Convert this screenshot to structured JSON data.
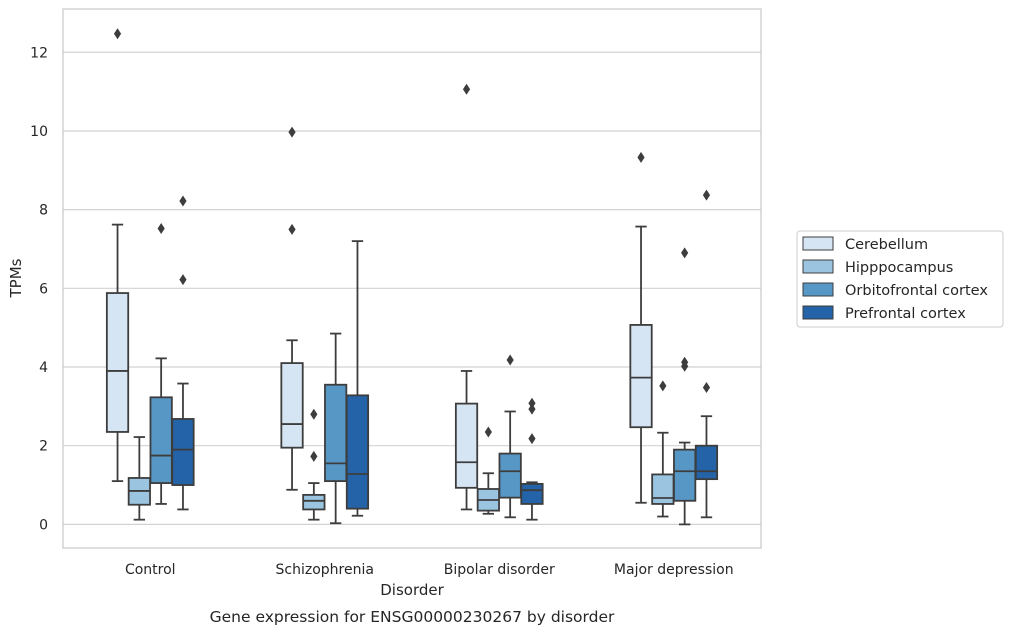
{
  "chart_data": {
    "type": "boxplot",
    "caption": "Gene expression for ENSG00000230267 by disorder",
    "xlabel": "Disorder",
    "ylabel": "TPMs",
    "ylim": [
      -0.6,
      13.1
    ],
    "yticks": [
      0,
      2,
      4,
      6,
      8,
      10,
      12
    ],
    "grid": "horizontal",
    "legend_position": "right",
    "categories": [
      "Control",
      "Schizophrenia",
      "Bipolar disorder",
      "Major depression"
    ],
    "series": [
      {
        "name": "Cerebellum",
        "color": "#d6e5f3",
        "boxes": [
          {
            "q1": 2.35,
            "median": 3.9,
            "q3": 5.88,
            "whisker_low": 1.1,
            "whisker_high": 7.62,
            "outliers": [
              12.47
            ]
          },
          {
            "q1": 1.95,
            "median": 2.55,
            "q3": 4.1,
            "whisker_low": 0.88,
            "whisker_high": 4.68,
            "outliers": [
              9.97,
              7.5
            ]
          },
          {
            "q1": 0.93,
            "median": 1.58,
            "q3": 3.07,
            "whisker_low": 0.38,
            "whisker_high": 3.9,
            "outliers": [
              11.06
            ]
          },
          {
            "q1": 2.47,
            "median": 3.73,
            "q3": 5.07,
            "whisker_low": 0.55,
            "whisker_high": 7.57,
            "outliers": [
              9.33
            ]
          }
        ]
      },
      {
        "name": "Hipppocampus",
        "color": "#9ac4df",
        "boxes": [
          {
            "q1": 0.5,
            "median": 0.85,
            "q3": 1.18,
            "whisker_low": 0.12,
            "whisker_high": 2.22,
            "outliers": []
          },
          {
            "q1": 0.38,
            "median": 0.6,
            "q3": 0.75,
            "whisker_low": 0.12,
            "whisker_high": 1.05,
            "outliers": [
              2.8,
              1.73
            ]
          },
          {
            "q1": 0.35,
            "median": 0.62,
            "q3": 0.9,
            "whisker_low": 0.27,
            "whisker_high": 1.3,
            "outliers": [
              2.35
            ]
          },
          {
            "q1": 0.52,
            "median": 0.67,
            "q3": 1.27,
            "whisker_low": 0.2,
            "whisker_high": 2.33,
            "outliers": [
              3.52
            ]
          }
        ]
      },
      {
        "name": "Orbitofrontal cortex",
        "color": "#5797c6",
        "boxes": [
          {
            "q1": 1.05,
            "median": 1.75,
            "q3": 3.23,
            "whisker_low": 0.52,
            "whisker_high": 4.22,
            "outliers": [
              7.52
            ]
          },
          {
            "q1": 1.1,
            "median": 1.55,
            "q3": 3.55,
            "whisker_low": 0.03,
            "whisker_high": 4.85,
            "outliers": []
          },
          {
            "q1": 0.68,
            "median": 1.35,
            "q3": 1.8,
            "whisker_low": 0.18,
            "whisker_high": 2.87,
            "outliers": [
              4.18
            ]
          },
          {
            "q1": 0.6,
            "median": 1.35,
            "q3": 1.9,
            "whisker_low": 0.0,
            "whisker_high": 2.08,
            "outliers": [
              6.9,
              4.12,
              4.02
            ]
          }
        ]
      },
      {
        "name": "Prefrontal cortex",
        "color": "#2463a7",
        "boxes": [
          {
            "q1": 1.0,
            "median": 1.9,
            "q3": 2.68,
            "whisker_low": 0.38,
            "whisker_high": 3.58,
            "outliers": [
              8.22,
              6.22
            ]
          },
          {
            "q1": 0.4,
            "median": 1.28,
            "q3": 3.28,
            "whisker_low": 0.22,
            "whisker_high": 7.2,
            "outliers": []
          },
          {
            "q1": 0.52,
            "median": 0.87,
            "q3": 1.03,
            "whisker_low": 0.12,
            "whisker_high": 1.07,
            "outliers": [
              3.08,
              2.93,
              2.18
            ]
          },
          {
            "q1": 1.15,
            "median": 1.35,
            "q3": 2.0,
            "whisker_low": 0.18,
            "whisker_high": 2.75,
            "outliers": [
              8.37,
              3.48
            ]
          }
        ]
      }
    ]
  }
}
